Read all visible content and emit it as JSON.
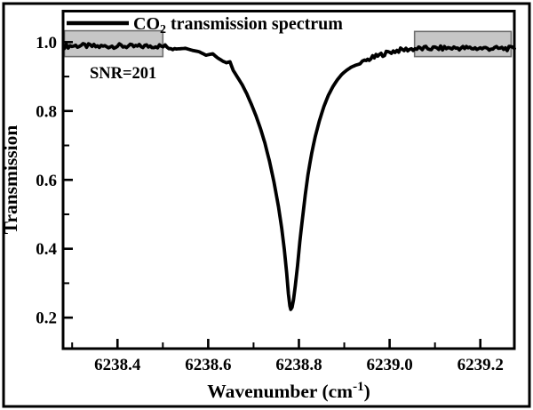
{
  "colors": {
    "background": "#ffffff",
    "frame": "#000000",
    "axis": "#000000",
    "curve": "#000000",
    "highlight_fill": "#c6c6c6",
    "highlight_stroke": "#6f6f6f"
  },
  "chart_data": {
    "type": "line",
    "title": "",
    "legend": {
      "prefix": "CO",
      "subscript": "2",
      "suffix": " transmission spectrum",
      "position": "top-left-inside"
    },
    "xlabel": {
      "main": "Wavenumber (cm",
      "superscript": "-1",
      "close": ")"
    },
    "ylabel": "Transmission",
    "xlim": [
      6238.28,
      6239.275
    ],
    "ylim": [
      0.11,
      1.09
    ],
    "grid": false,
    "x_major_ticks": [
      6238.4,
      6238.6,
      6238.8,
      6239.0,
      6239.2
    ],
    "x_major_tick_labels": [
      "6238.4",
      "6238.6",
      "6238.8",
      "6239.0",
      "6239.2"
    ],
    "x_minor_ticks": [
      6238.3,
      6238.5,
      6238.7,
      6238.9,
      6239.1
    ],
    "y_major_ticks": [
      1.0,
      0.8,
      0.6,
      0.4,
      0.2
    ],
    "y_major_tick_labels": [
      "1.0",
      "0.8",
      "0.6",
      "0.4",
      "0.2"
    ],
    "y_minor_ticks": [
      0.9,
      0.7,
      0.5,
      0.3
    ],
    "line_center_wavenumber": 6238.78,
    "peak_min_transmission": 0.22,
    "annotations": [
      {
        "text": "SNR=201",
        "x": 6238.34,
        "y": 0.898
      }
    ],
    "highlight_boxes": [
      {
        "name": "baseline-noise-region-left",
        "x0": 6238.283,
        "x1": 6238.5,
        "y0": 0.958,
        "y1": 1.033
      },
      {
        "name": "baseline-noise-region-right",
        "x0": 6239.055,
        "x1": 6239.268,
        "y0": 0.958,
        "y1": 1.031
      }
    ],
    "noise": {
      "amplitude": 0.0065,
      "regions": [
        [
          6238.283,
          6238.525
        ],
        [
          6238.94,
          6239.275
        ]
      ]
    },
    "series": [
      {
        "name": "CO2 transmission spectrum",
        "color": "#000000",
        "line_width": 3.8,
        "points": [
          [
            6238.283,
            0.988
          ],
          [
            6238.32,
            0.99
          ],
          [
            6238.36,
            0.987
          ],
          [
            6238.4,
            0.989
          ],
          [
            6238.44,
            0.987
          ],
          [
            6238.48,
            0.989
          ],
          [
            6238.505,
            0.987
          ],
          [
            6238.53,
            0.98
          ],
          [
            6238.55,
            0.982
          ],
          [
            6238.565,
            0.976
          ],
          [
            6238.58,
            0.972
          ],
          [
            6238.595,
            0.962
          ],
          [
            6238.61,
            0.966
          ],
          [
            6238.62,
            0.955
          ],
          [
            6238.632,
            0.945
          ],
          [
            6238.64,
            0.94
          ],
          [
            6238.648,
            0.943
          ],
          [
            6238.655,
            0.918
          ],
          [
            6238.665,
            0.897
          ],
          [
            6238.675,
            0.876
          ],
          [
            6238.685,
            0.85
          ],
          [
            6238.695,
            0.82
          ],
          [
            6238.705,
            0.787
          ],
          [
            6238.715,
            0.75
          ],
          [
            6238.725,
            0.707
          ],
          [
            6238.735,
            0.655
          ],
          [
            6238.745,
            0.594
          ],
          [
            6238.755,
            0.522
          ],
          [
            6238.762,
            0.46
          ],
          [
            6238.768,
            0.397
          ],
          [
            6238.773,
            0.33
          ],
          [
            6238.777,
            0.268
          ],
          [
            6238.78,
            0.234
          ],
          [
            6238.782,
            0.224
          ],
          [
            6238.785,
            0.23
          ],
          [
            6238.788,
            0.252
          ],
          [
            6238.792,
            0.292
          ],
          [
            6238.797,
            0.352
          ],
          [
            6238.802,
            0.42
          ],
          [
            6238.808,
            0.49
          ],
          [
            6238.814,
            0.556
          ],
          [
            6238.82,
            0.615
          ],
          [
            6238.828,
            0.676
          ],
          [
            6238.836,
            0.726
          ],
          [
            6238.845,
            0.771
          ],
          [
            6238.855,
            0.813
          ],
          [
            6238.865,
            0.846
          ],
          [
            6238.875,
            0.871
          ],
          [
            6238.885,
            0.891
          ],
          [
            6238.895,
            0.907
          ],
          [
            6238.905,
            0.918
          ],
          [
            6238.915,
            0.927
          ],
          [
            6238.925,
            0.933
          ],
          [
            6238.935,
            0.937
          ],
          [
            6238.945,
            0.944
          ],
          [
            6238.955,
            0.951
          ],
          [
            6238.97,
            0.958
          ],
          [
            6238.985,
            0.965
          ],
          [
            6239.0,
            0.971
          ],
          [
            6239.02,
            0.976
          ],
          [
            6239.04,
            0.979
          ],
          [
            6239.06,
            0.981
          ],
          [
            6239.1,
            0.982
          ],
          [
            6239.15,
            0.983
          ],
          [
            6239.2,
            0.982
          ],
          [
            6239.275,
            0.981
          ]
        ]
      }
    ]
  }
}
